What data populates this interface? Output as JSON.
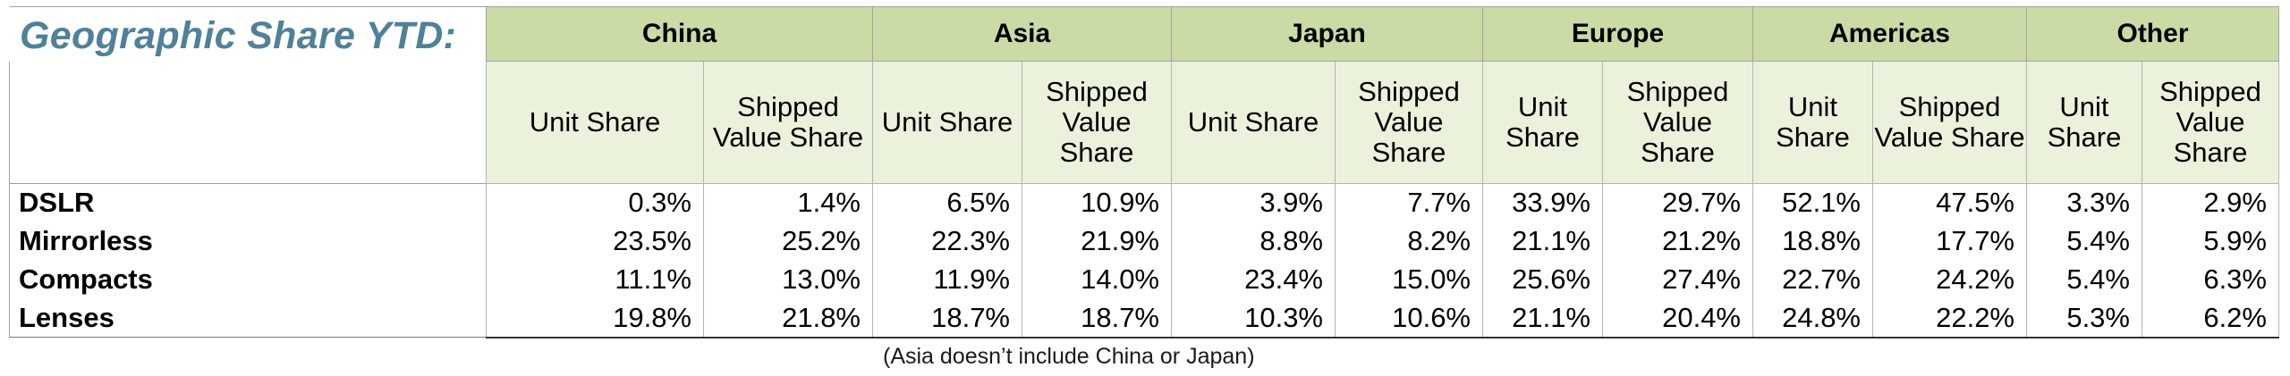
{
  "title": "Geographic Share YTD:",
  "regions": [
    "China",
    "Asia",
    "Japan",
    "Europe",
    "Americas",
    "Other"
  ],
  "subheaders": {
    "unit_share": "Unit Share",
    "shipped_value_share": "Shipped Value Share"
  },
  "rows": [
    {
      "label": "DSLR",
      "values": [
        "0.3%",
        "1.4%",
        "6.5%",
        "10.9%",
        "3.9%",
        "7.7%",
        "33.9%",
        "29.7%",
        "52.1%",
        "47.5%",
        "3.3%",
        "2.9%"
      ]
    },
    {
      "label": "Mirrorless",
      "values": [
        "23.5%",
        "25.2%",
        "22.3%",
        "21.9%",
        "8.8%",
        "8.2%",
        "21.1%",
        "21.2%",
        "18.8%",
        "17.7%",
        "5.4%",
        "5.9%"
      ]
    },
    {
      "label": "Compacts",
      "values": [
        "11.1%",
        "13.0%",
        "11.9%",
        "14.0%",
        "23.4%",
        "15.0%",
        "25.6%",
        "27.4%",
        "22.7%",
        "24.2%",
        "5.4%",
        "6.3%"
      ]
    },
    {
      "label": "Lenses",
      "values": [
        "19.8%",
        "21.8%",
        "18.7%",
        "18.7%",
        "10.3%",
        "10.6%",
        "21.1%",
        "20.4%",
        "24.8%",
        "22.2%",
        "5.3%",
        "6.2%"
      ]
    }
  ],
  "footnote": "(Asia doesn’t include China or Japan)"
}
